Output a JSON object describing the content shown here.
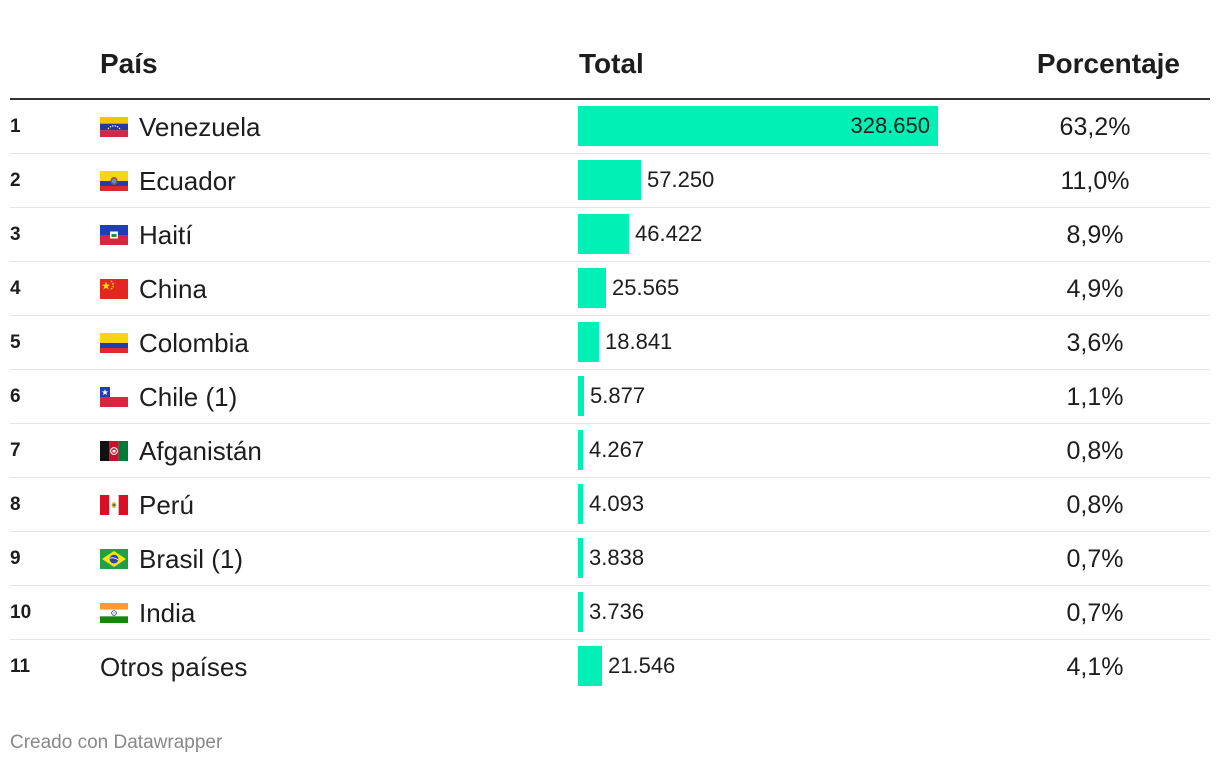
{
  "chart_data": {
    "type": "table",
    "columns": [
      "País",
      "Total",
      "Porcentaje"
    ],
    "bar_color": "#00f0b5",
    "bar_max": 328650,
    "rows": [
      {
        "rank": "1",
        "country": "Venezuela",
        "flag": "flag-venezuela-icon",
        "total": 328650,
        "total_label": "328.650",
        "percent": "63,2%"
      },
      {
        "rank": "2",
        "country": "Ecuador",
        "flag": "flag-ecuador-icon",
        "total": 57250,
        "total_label": "57.250",
        "percent": "11,0%"
      },
      {
        "rank": "3",
        "country": "Haití",
        "flag": "flag-haiti-icon",
        "total": 46422,
        "total_label": "46.422",
        "percent": "8,9%"
      },
      {
        "rank": "4",
        "country": "China",
        "flag": "flag-china-icon",
        "total": 25565,
        "total_label": "25.565",
        "percent": "4,9%"
      },
      {
        "rank": "5",
        "country": "Colombia",
        "flag": "flag-colombia-icon",
        "total": 18841,
        "total_label": "18.841",
        "percent": "3,6%"
      },
      {
        "rank": "6",
        "country": "Chile (1)",
        "flag": "flag-chile-icon",
        "total": 5877,
        "total_label": "5.877",
        "percent": "1,1%"
      },
      {
        "rank": "7",
        "country": "Afganistán",
        "flag": "flag-afghanistan-icon",
        "total": 4267,
        "total_label": "4.267",
        "percent": "0,8%"
      },
      {
        "rank": "8",
        "country": "Perú",
        "flag": "flag-peru-icon",
        "total": 4093,
        "total_label": "4.093",
        "percent": "0,8%"
      },
      {
        "rank": "9",
        "country": "Brasil (1)",
        "flag": "flag-brazil-icon",
        "total": 3838,
        "total_label": "3.838",
        "percent": "0,7%"
      },
      {
        "rank": "10",
        "country": "India",
        "flag": "flag-india-icon",
        "total": 3736,
        "total_label": "3.736",
        "percent": "0,7%"
      },
      {
        "rank": "11",
        "country": "Otros países",
        "flag": null,
        "total": 21546,
        "total_label": "21.546",
        "percent": "4,1%"
      }
    ]
  },
  "footer": "Creado con Datawrapper"
}
